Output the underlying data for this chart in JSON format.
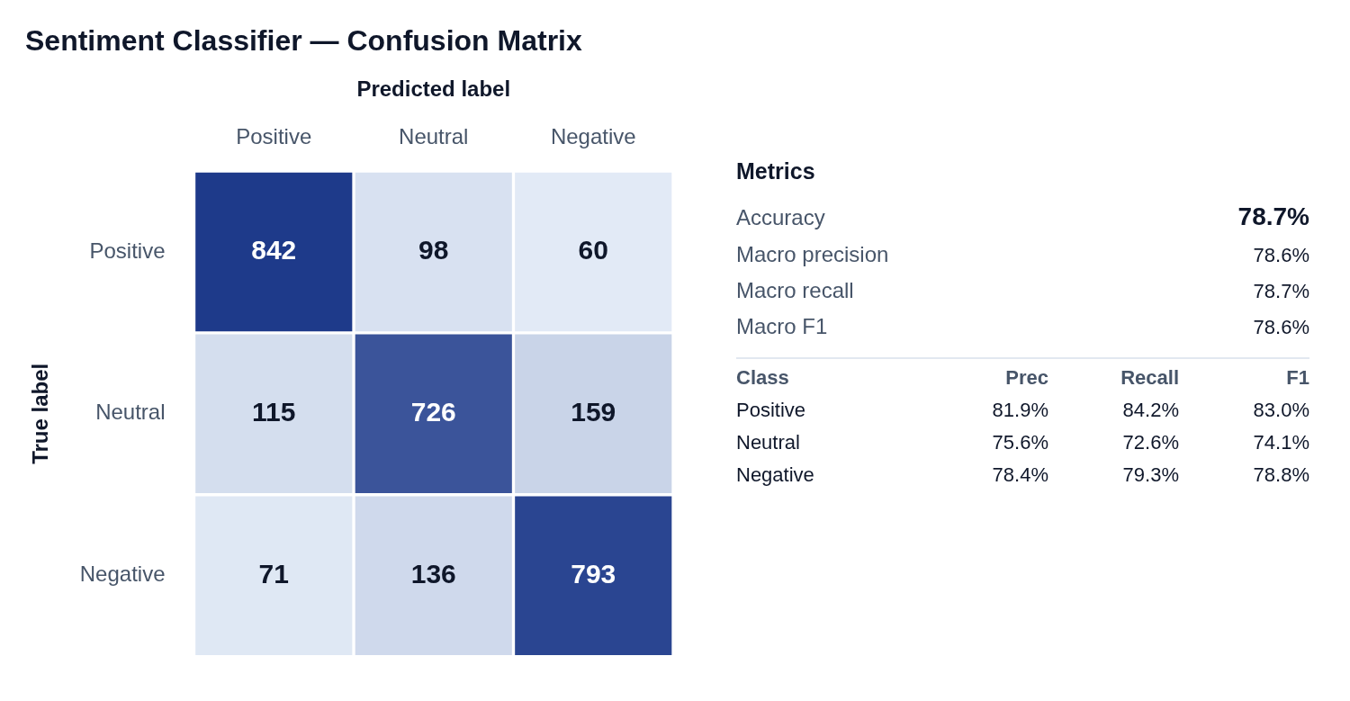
{
  "chart_data": [
    {
      "type": "heatmap",
      "title": "Sentiment Classifier — Confusion Matrix",
      "xlabel": "Predicted label",
      "ylabel": "True label",
      "categories": [
        "Positive",
        "Neutral",
        "Negative"
      ],
      "y_categories": [
        "Positive",
        "Neutral",
        "Negative"
      ],
      "cells": [
        [
          842,
          98,
          60
        ],
        [
          115,
          726,
          159
        ],
        [
          71,
          136,
          793
        ]
      ],
      "data_labels": true
    },
    {
      "type": "other",
      "title": "Metrics",
      "y_categories": [
        "Accuracy",
        "Macro precision",
        "Macro recall",
        "Macro F1"
      ],
      "cell_labels": [
        [
          "78.7%"
        ],
        [
          "78.6%"
        ],
        [
          "78.7%"
        ],
        [
          "78.6%"
        ]
      ]
    },
    {
      "type": "other",
      "categories": [
        "Class",
        "Prec",
        "Recall",
        "F1"
      ],
      "y_categories": [
        "Positive",
        "Neutral",
        "Negative"
      ],
      "cell_labels": [
        [
          "81.9%",
          "84.2%",
          "83.0%"
        ],
        [
          "75.6%",
          "72.6%",
          "74.1%"
        ],
        [
          "78.4%",
          "79.3%",
          "78.8%"
        ]
      ]
    }
  ]
}
